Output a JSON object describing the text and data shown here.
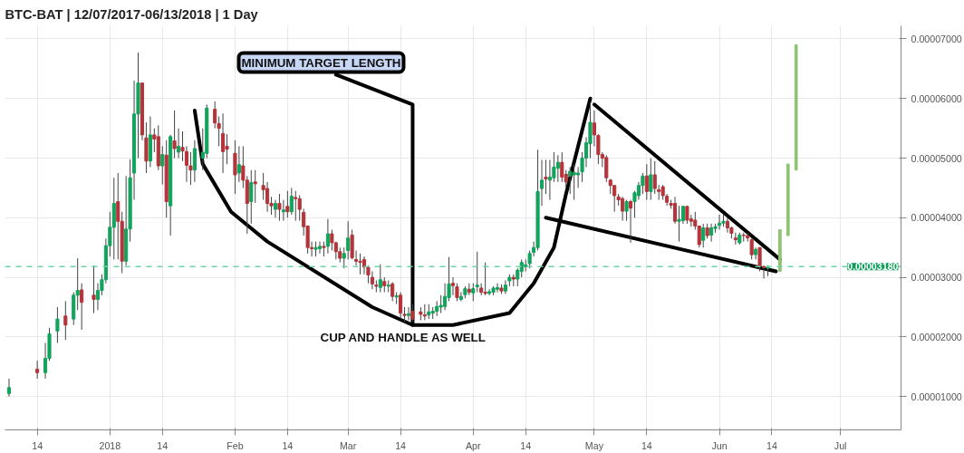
{
  "chart_data": {
    "type": "candlestick",
    "title": "BTC-BAT | 12/07/2017-06/13/2018 | 1 Day",
    "x": [
      "2017-12-07",
      "2017-12-14",
      "2017-12-16",
      "2017-12-17",
      "2017-12-19",
      "2017-12-21",
      "2017-12-23",
      "2017-12-24",
      "2017-12-25",
      "2017-12-28",
      "2017-12-29",
      "2017-12-30",
      "2017-12-31",
      "2018-01-01",
      "2018-01-02",
      "2018-01-03",
      "2018-01-04",
      "2018-01-05",
      "2018-01-06",
      "2018-01-07",
      "2018-01-08",
      "2018-01-09",
      "2018-01-10",
      "2018-01-11",
      "2018-01-12",
      "2018-01-13",
      "2018-01-14",
      "2018-01-15",
      "2018-01-16",
      "2018-01-17",
      "2018-01-18",
      "2018-01-19",
      "2018-01-20",
      "2018-01-21",
      "2018-01-22",
      "2018-01-24",
      "2018-01-25",
      "2018-01-27",
      "2018-01-28",
      "2018-01-29",
      "2018-01-30",
      "2018-02-01",
      "2018-02-02",
      "2018-02-03",
      "2018-02-04",
      "2018-02-05",
      "2018-02-06",
      "2018-02-08",
      "2018-02-09",
      "2018-02-10",
      "2018-02-11",
      "2018-02-12",
      "2018-02-13",
      "2018-02-14",
      "2018-02-15",
      "2018-02-16",
      "2018-02-17",
      "2018-02-18",
      "2018-02-19",
      "2018-02-20",
      "2018-02-21",
      "2018-02-22",
      "2018-02-23",
      "2018-02-24",
      "2018-02-25",
      "2018-02-26",
      "2018-02-27",
      "2018-02-28",
      "2018-03-01",
      "2018-03-02",
      "2018-03-03",
      "2018-03-04",
      "2018-03-05",
      "2018-03-06",
      "2018-03-07",
      "2018-03-08",
      "2018-03-09",
      "2018-03-10",
      "2018-03-11",
      "2018-03-12",
      "2018-03-13",
      "2018-03-14",
      "2018-03-15",
      "2018-03-16",
      "2018-03-17",
      "2018-03-19",
      "2018-03-20",
      "2018-03-21",
      "2018-03-22",
      "2018-03-23",
      "2018-03-24",
      "2018-03-25",
      "2018-03-26",
      "2018-03-27",
      "2018-03-28",
      "2018-03-29",
      "2018-03-30",
      "2018-03-31",
      "2018-04-01",
      "2018-04-02",
      "2018-04-03",
      "2018-04-04",
      "2018-04-05",
      "2018-04-06",
      "2018-04-07",
      "2018-04-08",
      "2018-04-09",
      "2018-04-10",
      "2018-04-11",
      "2018-04-12",
      "2018-04-13",
      "2018-04-14",
      "2018-04-15",
      "2018-04-16",
      "2018-04-17",
      "2018-04-18",
      "2018-04-19",
      "2018-04-20",
      "2018-04-21",
      "2018-04-22",
      "2018-04-23",
      "2018-04-24",
      "2018-04-25",
      "2018-04-26",
      "2018-04-27",
      "2018-04-28",
      "2018-04-29",
      "2018-04-30",
      "2018-05-01",
      "2018-05-02",
      "2018-05-03",
      "2018-05-04",
      "2018-05-05",
      "2018-05-06",
      "2018-05-07",
      "2018-05-08",
      "2018-05-09",
      "2018-05-10",
      "2018-05-11",
      "2018-05-12",
      "2018-05-13",
      "2018-05-14",
      "2018-05-15",
      "2018-05-16",
      "2018-05-17",
      "2018-05-18",
      "2018-05-19",
      "2018-05-20",
      "2018-05-21",
      "2018-05-22",
      "2018-05-23",
      "2018-05-24",
      "2018-05-25",
      "2018-05-26",
      "2018-05-27",
      "2018-05-28",
      "2018-05-29",
      "2018-05-30",
      "2018-05-31",
      "2018-06-01",
      "2018-06-02",
      "2018-06-03",
      "2018-06-04",
      "2018-06-05",
      "2018-06-06",
      "2018-06-07",
      "2018-06-08",
      "2018-06-09",
      "2018-06-10",
      "2018-06-11",
      "2018-06-12",
      "2018-06-13"
    ],
    "ohlc": [
      [
        1.05e-05,
        1.3e-05,
        1e-05,
        1.15e-05
      ],
      [
        1.46e-05,
        1.6e-05,
        1.3e-05,
        1.4e-05
      ],
      [
        1.4e-05,
        1.9e-05,
        1.3e-05,
        1.64e-05
      ],
      [
        1.64e-05,
        2.15e-05,
        1.6e-05,
        2.05e-05
      ],
      [
        2.1e-05,
        2.5e-05,
        1.9e-05,
        2.3e-05
      ],
      [
        2.35e-05,
        2.6e-05,
        1.95e-05,
        2.2e-05
      ],
      [
        2.3e-05,
        2.75e-05,
        2.2e-05,
        2.7e-05
      ],
      [
        2.7e-05,
        3.32e-05,
        2.45e-05,
        2.78e-05
      ],
      [
        2.79e-05,
        2.9e-05,
        2.12e-05,
        2.58e-05
      ],
      [
        2.7e-05,
        3.2e-05,
        2.4e-05,
        2.63e-05
      ],
      [
        2.63e-05,
        2.9e-05,
        2.45e-05,
        2.78e-05
      ],
      [
        2.78e-05,
        3.05e-05,
        2.7e-05,
        2.96e-05
      ],
      [
        2.96e-05,
        3.65e-05,
        2.9e-05,
        3.53e-05
      ],
      [
        3.53e-05,
        4.1e-05,
        3.35e-05,
        3.84e-05
      ],
      [
        3.84e-05,
        4.67e-05,
        3.3e-05,
        4.24e-05
      ],
      [
        4.27e-05,
        4.75e-05,
        3.3e-05,
        3.94e-05
      ],
      [
        3.94e-05,
        4.1e-05,
        3.07e-05,
        3.27e-05
      ],
      [
        3.27e-05,
        4.7e-05,
        3.2e-05,
        3.81e-05
      ],
      [
        3.81e-05,
        4.98e-05,
        3.6e-05,
        4.67e-05
      ],
      [
        4.75e-05,
        6.3e-05,
        4.3e-05,
        5.74e-05
      ],
      [
        5.74e-05,
        6.77e-05,
        5e-05,
        6.26e-05
      ],
      [
        6.26e-05,
        6.26e-05,
        5.3e-05,
        5.39e-05
      ],
      [
        5.34e-05,
        5.6e-05,
        4.75e-05,
        4.95e-05
      ],
      [
        4.95e-05,
        5.7e-05,
        4.85e-05,
        5.39e-05
      ],
      [
        5.39e-05,
        5.5e-05,
        5.1e-05,
        5.32e-05
      ],
      [
        5.36e-05,
        5.55e-05,
        4.8e-05,
        4.87e-05
      ],
      [
        4.87e-05,
        5.2e-05,
        4.56e-05,
        5.06e-05
      ],
      [
        5.05e-05,
        5.3e-05,
        4e-05,
        4.27e-05
      ],
      [
        4.2e-05,
        5.39e-05,
        3.7e-05,
        5.36e-05
      ],
      [
        5.29e-05,
        5.8e-05,
        5e-05,
        5.16e-05
      ],
      [
        5.1e-05,
        5.5e-05,
        5e-05,
        5.2e-05
      ],
      [
        5.18e-05,
        5.45e-05,
        4.95e-05,
        5.12e-05
      ],
      [
        5.11e-05,
        5.2e-05,
        4.6e-05,
        4.88e-05
      ],
      [
        4.87e-05,
        5.1e-05,
        4.55e-05,
        4.8e-05
      ],
      [
        4.8e-05,
        5.3e-05,
        4.6e-05,
        5.16e-05
      ],
      [
        5e-05,
        5.5e-05,
        4.8e-05,
        5.1e-05
      ],
      [
        5.08e-05,
        5.9e-05,
        5e-05,
        5.84e-05
      ],
      [
        5.82e-05,
        5.95e-05,
        5.5e-05,
        5.59e-05
      ],
      [
        5.58e-05,
        5.7e-05,
        5.2e-05,
        5.5e-05
      ],
      [
        5.41e-05,
        5.75e-05,
        4.75e-05,
        5.11e-05
      ],
      [
        5.2e-05,
        5.4e-05,
        4.9e-05,
        5.15e-05
      ],
      [
        5.08e-05,
        5.3e-05,
        4.4e-05,
        4.72e-05
      ],
      [
        4.75e-05,
        5.2e-05,
        4.6e-05,
        4.89e-05
      ],
      [
        4.87e-05,
        5.2e-05,
        4.5e-05,
        4.63e-05
      ],
      [
        4.63e-05,
        4.7e-05,
        3.73e-05,
        4.24e-05
      ],
      [
        4.27e-05,
        4.8e-05,
        3.9e-05,
        4.59e-05
      ],
      [
        4.6e-05,
        4.8e-05,
        4.25e-05,
        4.57e-05
      ],
      [
        4.54e-05,
        4.75e-05,
        4.3e-05,
        4.47e-05
      ],
      [
        4.49e-05,
        4.6e-05,
        4.1e-05,
        4.24e-05
      ],
      [
        4.24e-05,
        4.35e-05,
        4.05e-05,
        4.2e-05
      ],
      [
        4.14e-05,
        4.3e-05,
        4e-05,
        4.24e-05
      ],
      [
        4.24e-05,
        4.4e-05,
        3.95e-05,
        4.14e-05
      ],
      [
        4.1e-05,
        4.3e-05,
        3.95e-05,
        4.13e-05
      ],
      [
        4.19e-05,
        4.45e-05,
        4e-05,
        4.1e-05
      ],
      [
        4.1e-05,
        4.5e-05,
        4.05e-05,
        4.36e-05
      ],
      [
        4.34e-05,
        4.45e-05,
        3.95e-05,
        4.32e-05
      ],
      [
        4.32e-05,
        4.38e-05,
        3.95e-05,
        4.14e-05
      ],
      [
        4.09e-05,
        4.15e-05,
        3.7e-05,
        3.85e-05
      ],
      [
        3.86e-05,
        3.86e-05,
        3.4e-05,
        3.5e-05
      ],
      [
        3.5e-05,
        3.6e-05,
        3.35e-05,
        3.48e-05
      ],
      [
        3.47e-05,
        3.6e-05,
        3.35e-05,
        3.5e-05
      ],
      [
        3.48e-05,
        3.6e-05,
        3.4e-05,
        3.52e-05
      ],
      [
        3.52e-05,
        3.6e-05,
        3.35e-05,
        3.5e-05
      ],
      [
        3.52e-05,
        3.98e-05,
        3.4e-05,
        3.73e-05
      ],
      [
        3.73e-05,
        3.8e-05,
        3.45e-05,
        3.58e-05
      ],
      [
        3.58e-05,
        3.6e-05,
        3.3e-05,
        3.43e-05
      ],
      [
        3.43e-05,
        3.5e-05,
        3.25e-05,
        3.32e-05
      ],
      [
        3.32e-05,
        3.5e-05,
        3.15e-05,
        3.4e-05
      ],
      [
        3.45e-05,
        3.94e-05,
        3.3e-05,
        3.66e-05
      ],
      [
        3.71e-05,
        3.8e-05,
        3.3e-05,
        3.33e-05
      ],
      [
        3.3e-05,
        3.45e-05,
        3.2e-05,
        3.27e-05
      ],
      [
        3.27e-05,
        3.4e-05,
        3.05e-05,
        3.25e-05
      ],
      [
        3.3e-05,
        3.35e-05,
        3.05e-05,
        3.17e-05
      ],
      [
        3.17e-05,
        3.2e-05,
        2.9e-05,
        3.04e-05
      ],
      [
        3e-05,
        3.1e-05,
        2.8e-05,
        2.89e-05
      ],
      [
        2.87e-05,
        2.95e-05,
        2.75e-05,
        2.85e-05
      ],
      [
        2.83e-05,
        3.22e-05,
        2.75e-05,
        2.96e-05
      ],
      [
        2.93e-05,
        3e-05,
        2.75e-05,
        2.86e-05
      ],
      [
        2.85e-05,
        2.95e-05,
        2.75e-05,
        2.87e-05
      ],
      [
        2.89e-05,
        2.92e-05,
        2.6e-05,
        2.68e-05
      ],
      [
        2.67e-05,
        2.75e-05,
        2.55e-05,
        2.69e-05
      ],
      [
        2.7e-05,
        2.75e-05,
        2.3e-05,
        2.4e-05
      ],
      [
        2.38e-05,
        2.5e-05,
        2.25e-05,
        2.36e-05
      ],
      [
        2.36e-05,
        2.5e-05,
        2.28e-05,
        2.39e-05
      ],
      [
        2.43e-05,
        2.55e-05,
        2.25e-05,
        2.3e-05
      ],
      [
        2.42e-05,
        2.5e-05,
        2.28e-05,
        2.38e-05
      ],
      [
        2.37e-05,
        2.55e-05,
        2.28e-05,
        2.35e-05
      ],
      [
        2.37e-05,
        2.55e-05,
        2.3e-05,
        2.42e-05
      ],
      [
        2.4e-05,
        2.5e-05,
        2.3e-05,
        2.43e-05
      ],
      [
        2.43e-05,
        2.6e-05,
        2.35e-05,
        2.51e-05
      ],
      [
        2.5e-05,
        2.7e-05,
        2.4e-05,
        2.53e-05
      ],
      [
        2.51e-05,
        2.9e-05,
        2.45e-05,
        2.68e-05
      ],
      [
        2.66e-05,
        3.34e-05,
        2.6e-05,
        2.89e-05
      ],
      [
        2.9e-05,
        3e-05,
        2.7e-05,
        2.86e-05
      ],
      [
        2.84e-05,
        2.9e-05,
        2.6e-05,
        2.66e-05
      ],
      [
        2.63e-05,
        2.75e-05,
        2.6e-05,
        2.68e-05
      ],
      [
        2.71e-05,
        2.85e-05,
        2.65e-05,
        2.81e-05
      ],
      [
        2.8e-05,
        2.9e-05,
        2.7e-05,
        2.75e-05
      ],
      [
        2.74e-05,
        2.9e-05,
        2.6e-05,
        2.81e-05
      ],
      [
        2.84e-05,
        3.43e-05,
        2.75e-05,
        2.87e-05
      ],
      [
        2.82e-05,
        2.9e-05,
        2.7e-05,
        2.75e-05
      ],
      [
        2.75e-05,
        3.25e-05,
        2.7e-05,
        2.73e-05
      ],
      [
        2.73e-05,
        2.8e-05,
        2.7e-05,
        2.76e-05
      ],
      [
        2.75e-05,
        2.85e-05,
        2.7e-05,
        2.82e-05
      ],
      [
        2.8e-05,
        2.9e-05,
        2.75e-05,
        2.83e-05
      ],
      [
        2.82e-05,
        2.88e-05,
        2.72e-05,
        2.77e-05
      ],
      [
        2.77e-05,
        2.95e-05,
        2.72e-05,
        2.87e-05
      ],
      [
        2.94e-05,
        3.05e-05,
        2.85e-05,
        3e-05
      ],
      [
        3e-05,
        3.05e-05,
        2.85e-05,
        2.97e-05
      ],
      [
        2.97e-05,
        3.15e-05,
        2.85e-05,
        3.12e-05
      ],
      [
        3.1e-05,
        3.3e-05,
        3e-05,
        3.25e-05
      ],
      [
        3.18e-05,
        3.3e-05,
        3.1e-05,
        3.21e-05
      ],
      [
        3.23e-05,
        3.45e-05,
        3.15e-05,
        3.4e-05
      ],
      [
        3.42e-05,
        3.6e-05,
        3.35e-05,
        3.5e-05
      ],
      [
        3.5e-05,
        5.14e-05,
        3.45e-05,
        4.44e-05
      ],
      [
        4.49e-05,
        4.97e-05,
        4.2e-05,
        4.63e-05
      ],
      [
        4.68e-05,
        4.97e-05,
        4.4e-05,
        4.65e-05
      ],
      [
        4.63e-05,
        4.97e-05,
        4.3e-05,
        4.68e-05
      ],
      [
        4.67e-05,
        5.1e-05,
        4.6e-05,
        4.85e-05
      ],
      [
        4.83e-05,
        5.05e-05,
        4.6e-05,
        4.93e-05
      ],
      [
        4.93e-05,
        5.1e-05,
        4.6e-05,
        4.68e-05
      ],
      [
        4.73e-05,
        4.8e-05,
        4.5e-05,
        4.6e-05
      ],
      [
        4.7e-05,
        4.85e-05,
        4.4e-05,
        4.78e-05
      ],
      [
        4.72e-05,
        4.9e-05,
        4.3e-05,
        4.76e-05
      ],
      [
        4.72e-05,
        4.85e-05,
        4.5e-05,
        4.75e-05
      ],
      [
        4.77e-05,
        5.1e-05,
        4.6e-05,
        5e-05
      ],
      [
        5e-05,
        5.35e-05,
        4.85e-05,
        5.26e-05
      ],
      [
        5.24e-05,
        5.93e-05,
        5e-05,
        5.6e-05
      ],
      [
        5.59e-05,
        5.8e-05,
        5.2e-05,
        5.39e-05
      ],
      [
        5.38e-05,
        5.4e-05,
        4.9e-05,
        5.06e-05
      ],
      [
        5.06e-05,
        5.1e-05,
        4.85e-05,
        5e-05
      ],
      [
        5.01e-05,
        5.05e-05,
        4.6e-05,
        4.67e-05
      ],
      [
        4.63e-05,
        4.65e-05,
        4.4e-05,
        4.54e-05
      ],
      [
        4.54e-05,
        4.55e-05,
        4.1e-05,
        4.37e-05
      ],
      [
        4.35e-05,
        4.4e-05,
        4.2e-05,
        4.3e-05
      ],
      [
        4.32e-05,
        4.35e-05,
        3.95e-05,
        4.11e-05
      ],
      [
        4.11e-05,
        4.3e-05,
        3.95e-05,
        4.27e-05
      ],
      [
        4.27e-05,
        4.3e-05,
        3.58e-05,
        4.16e-05
      ],
      [
        4.27e-05,
        4.45e-05,
        4e-05,
        4.42e-05
      ],
      [
        4.37e-05,
        4.6e-05,
        4.3e-05,
        4.54e-05
      ],
      [
        4.54e-05,
        4.75e-05,
        4.4e-05,
        4.7e-05
      ],
      [
        4.7e-05,
        4.9e-05,
        4.3e-05,
        4.44e-05
      ],
      [
        4.44e-05,
        5e-05,
        4.3e-05,
        4.72e-05
      ],
      [
        4.72e-05,
        4.95e-05,
        4.4e-05,
        4.49e-05
      ],
      [
        4.47e-05,
        4.55e-05,
        4.3e-05,
        4.44e-05
      ],
      [
        4.52e-05,
        4.55e-05,
        4.3e-05,
        4.37e-05
      ],
      [
        4.36e-05,
        4.4e-05,
        4.2e-05,
        4.26e-05
      ],
      [
        4.24e-05,
        4.3e-05,
        4.15e-05,
        4.21e-05
      ],
      [
        4.24e-05,
        4.35e-05,
        3.9e-05,
        3.94e-05
      ],
      [
        3.94e-05,
        4.2e-05,
        3.6e-05,
        3.97e-05
      ],
      [
        3.95e-05,
        4.2e-05,
        3.9e-05,
        4.19e-05
      ],
      [
        4.19e-05,
        4.2e-05,
        3.9e-05,
        3.96e-05
      ],
      [
        3.98e-05,
        4.05e-05,
        3.85e-05,
        3.94e-05
      ],
      [
        3.96e-05,
        4.1e-05,
        3.8e-05,
        3.86e-05
      ],
      [
        3.86e-05,
        3.87e-05,
        3.5e-05,
        3.55e-05
      ],
      [
        3.62e-05,
        3.9e-05,
        3.5e-05,
        3.83e-05
      ],
      [
        3.83e-05,
        3.9e-05,
        3.65e-05,
        3.7e-05
      ],
      [
        3.71e-05,
        3.9e-05,
        3.6e-05,
        3.83e-05
      ],
      [
        3.82e-05,
        3.9e-05,
        3.75e-05,
        3.85e-05
      ],
      [
        3.87e-05,
        4.05e-05,
        3.8e-05,
        3.91e-05
      ],
      [
        3.91e-05,
        4.05e-05,
        3.85e-05,
        3.94e-05
      ],
      [
        3.94e-05,
        4e-05,
        3.75e-05,
        3.83e-05
      ],
      [
        3.83e-05,
        3.85e-05,
        3.65e-05,
        3.74e-05
      ],
      [
        3.66e-05,
        3.75e-05,
        3.55e-05,
        3.63e-05
      ],
      [
        3.58e-05,
        3.75e-05,
        3.55e-05,
        3.71e-05
      ],
      [
        3.71e-05,
        3.75e-05,
        3.6e-05,
        3.7e-05
      ],
      [
        3.7e-05,
        3.75e-05,
        3.6e-05,
        3.66e-05
      ],
      [
        3.63e-05,
        3.65e-05,
        3.3e-05,
        3.38e-05
      ],
      [
        3.38e-05,
        3.5e-05,
        3.3e-05,
        3.47e-05
      ],
      [
        3.5e-05,
        3.5e-05,
        3.1e-05,
        3.19e-05
      ],
      [
        3.18e-05,
        3.2e-05,
        2.98e-05,
        3.16e-05
      ],
      [
        3.15e-05,
        3.2e-05,
        3.02e-05,
        3.18e-05
      ]
    ],
    "series": [
      {
        "type": "line",
        "color": "#000000",
        "x": [
          "2018-01-22",
          "2018-01-24",
          "2018-01-31",
          "2018-02-09",
          "2018-03-07",
          "2018-03-17",
          "2018-03-27",
          "2018-04-10",
          "2018-04-16",
          "2018-04-21",
          "2018-04-24",
          "2018-04-30"
        ],
        "values": [
          5.8e-05,
          4.9e-05,
          4.1e-05,
          3.6e-05,
          2.5e-05,
          2.2e-05,
          2.2e-05,
          2.4e-05,
          2.9e-05,
          3.5e-05,
          4.4e-05,
          6e-05
        ]
      },
      {
        "type": "line",
        "color": "#000000",
        "x": [
          "2018-05-01",
          "2018-06-16"
        ],
        "values": [
          5.9e-05,
          3.3e-05
        ]
      },
      {
        "type": "line",
        "color": "#000000",
        "x": [
          "2018-04-19",
          "2018-06-15"
        ],
        "values": [
          4e-05,
          3.1e-05
        ]
      },
      {
        "type": "line",
        "color": "#000000",
        "x": [
          "2018-02-26",
          "2018-03-17",
          "2018-03-17"
        ],
        "values": [
          6.4e-05,
          5.9e-05,
          2.2e-05
        ]
      },
      {
        "type": "bar",
        "color": "#8dc470",
        "x": [
          "2018-06-16",
          "2018-06-18",
          "2018-06-20"
        ],
        "base": [
          3.1e-05,
          3.7e-05,
          4.8e-05
        ],
        "values": [
          7e-06,
          1.2e-05,
          2.1e-05
        ]
      }
    ],
    "xlim": [
      "2017-12-06",
      "2018-07-16"
    ],
    "xticks": [
      {
        "value": "2017-12-14",
        "label": "14"
      },
      {
        "value": "2018-01-01",
        "label": "2018"
      },
      {
        "value": "2018-01-14",
        "label": "14"
      },
      {
        "value": "2018-02-01",
        "label": "Feb"
      },
      {
        "value": "2018-02-14",
        "label": "14"
      },
      {
        "value": "2018-03-01",
        "label": "Mar"
      },
      {
        "value": "2018-03-14",
        "label": "14"
      },
      {
        "value": "2018-04-01",
        "label": "Apr"
      },
      {
        "value": "2018-04-14",
        "label": "14"
      },
      {
        "value": "2018-05-01",
        "label": "May"
      },
      {
        "value": "2018-05-14",
        "label": "14"
      },
      {
        "value": "2018-06-01",
        "label": "Jun"
      },
      {
        "value": "2018-06-14",
        "label": "14"
      },
      {
        "value": "2018-07-01",
        "label": "Jul"
      }
    ],
    "ylim": [
      4.4e-06,
      7.22e-05
    ],
    "yticks": [
      {
        "value": 1e-05,
        "label": "0.00001000"
      },
      {
        "value": 2e-05,
        "label": "0.00002000"
      },
      {
        "value": 3e-05,
        "label": "0.00003000"
      },
      {
        "value": 4e-05,
        "label": "0.00004000"
      },
      {
        "value": 5e-05,
        "label": "0.00005000"
      },
      {
        "value": 6e-05,
        "label": "0.00006000"
      },
      {
        "value": 7e-05,
        "label": "0.00007000"
      }
    ],
    "grid": true,
    "ref_lines": [
      {
        "axis": "y",
        "value": 3.18e-05,
        "label": "0.00003180",
        "color": "#6fd3a6",
        "line_style": "dashed"
      }
    ],
    "annotations": [
      "MINIMUM TARGET LENGTH",
      "CUP AND HANDLE AS WELL"
    ]
  }
}
